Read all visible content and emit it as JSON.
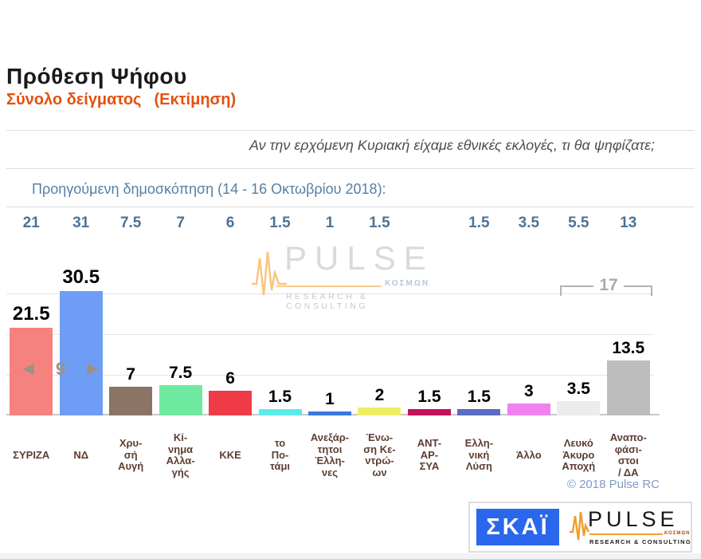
{
  "header": {
    "title": "Πρόθεση Ψήφου",
    "subtitle": "Σύνολο δείγματος",
    "subtitle_note": "(Εκτίμηση)"
  },
  "question": "Αν την ερχόμενη Κυριακή είχαμε εθνικές εκλογές, τι θα ψηφίζατε;",
  "previous_label": "Προηγούμενη δημοσκόπηση (14 - 16 Οκτωβρίου 2018):",
  "watermark": {
    "brand": "PULSE",
    "brand_sub": "ΚΟΣΜΩΝ",
    "tagline": "RESEARCH & CONSULTING"
  },
  "copyright": "© 2018 Pulse RC",
  "logos": {
    "skai": "ΣΚΑΪ",
    "pulse": "PULSE",
    "pulse_sub": "ΚΟΣΜΩΝ",
    "pulse_tagline": "RESEARCH & CONSULTING"
  },
  "chart_data": {
    "type": "bar",
    "title": "Πρόθεση Ψήφου — Σύνολο δείγματος (Εκτίμηση)",
    "ylim": [
      0,
      35
    ],
    "gridline_values": [
      10,
      20,
      30
    ],
    "grid": true,
    "categories": [
      "ΣΥΡΙΖΑ",
      "ΝΔ",
      "Χρυσή Αυγή",
      "Κίνημα Αλλαγής",
      "ΚΚΕ",
      "το Ποτάμι",
      "Ανεξάρτητοι Έλληνες",
      "Ένωση Κεντρώων",
      "ΑΝΤΑΡΣΥΑ",
      "Ελληνική Λύση",
      "Άλλο",
      "Λευκό Άκυρο Αποχή",
      "Αναποφάσιστοι / ΔΑ"
    ],
    "series": [
      {
        "name": "Εκτίμηση",
        "values": [
          21.5,
          30.5,
          7,
          7.5,
          6,
          1.5,
          1,
          2,
          1.5,
          1.5,
          3,
          3.5,
          13.5
        ]
      },
      {
        "name": "Προηγούμενη δημοσκόπηση (14 - 16 Οκτωβρίου 2018)",
        "values": [
          21,
          31,
          7.5,
          7,
          6,
          1.5,
          1,
          1.5,
          null,
          1.5,
          3.5,
          5.5,
          13
        ]
      }
    ],
    "bar_colors": [
      "#f5827f",
      "#6f9df5",
      "#8b7365",
      "#6fe9a0",
      "#ef3b45",
      "#5ceaea",
      "#3c79de",
      "#efef63",
      "#c3135c",
      "#5a6cc2",
      "#ef82ef",
      "#ececec",
      "#bdbdbd"
    ],
    "label_lines": [
      "ΣΥΡΙΖΑ",
      "ΝΔ",
      "Χρυ-\nσή\nΑυγή",
      "Κί-\nνημα\nΑλλα-\nγής",
      "ΚΚΕ",
      "το\nΠο-\nτάμι",
      "Ανεξάρ-\nτητοι\nΈλλη-\nνες",
      "Ένω-\nση Κε-\nντρώ-\nων",
      "ΑΝΤ-\nΑΡ-\nΣΥΑ",
      "Ελλη-\nνική\nΛύση",
      "Άλλο",
      "Λευκό\nΆκυρο\nΑποχή",
      "Αναπο-\nφάσι-\nστοι\n/ ΔΑ"
    ],
    "annotations": {
      "lead_gap": {
        "left_arrow": "◀",
        "value": "9",
        "right_arrow": "▶"
      },
      "bracket": {
        "value": "17"
      }
    }
  }
}
